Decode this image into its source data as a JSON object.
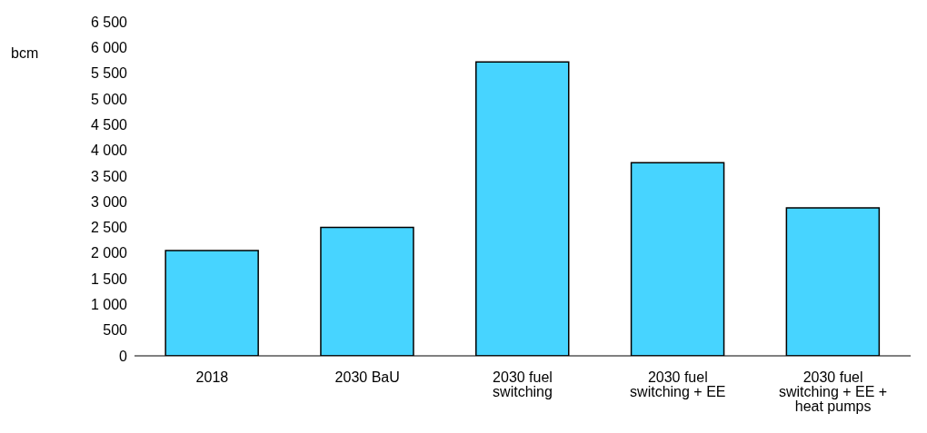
{
  "chart_data": {
    "type": "bar",
    "ylabel": "bcm",
    "categories": [
      "2018",
      "2030 BaU",
      "2030 fuel switching",
      "2030 fuel switching + EE",
      "2030 fuel switching + EE + heat pumps"
    ],
    "values": [
      2050,
      2500,
      5720,
      3760,
      2880
    ],
    "color": "#47d4ff",
    "ylim": [
      0,
      6500
    ],
    "yticks": [
      0,
      500,
      {
        "value": 1000,
        "label": "1 000"
      },
      {
        "value": 1500,
        "label": "1 500"
      },
      {
        "value": 2000,
        "label": "2 000"
      },
      {
        "value": 2500,
        "label": "2 500"
      },
      {
        "value": 3000,
        "label": "3 000"
      },
      {
        "value": 3500,
        "label": "3 500"
      },
      {
        "value": 4000,
        "label": "4 000"
      },
      {
        "value": 4500,
        "label": "4 500"
      },
      {
        "value": 5000,
        "label": "5 000"
      },
      {
        "value": 5500,
        "label": "5 500"
      },
      {
        "value": 6000,
        "label": "6 000"
      },
      {
        "value": 6500,
        "label": "6 500"
      }
    ],
    "grid": false,
    "legend": false
  }
}
